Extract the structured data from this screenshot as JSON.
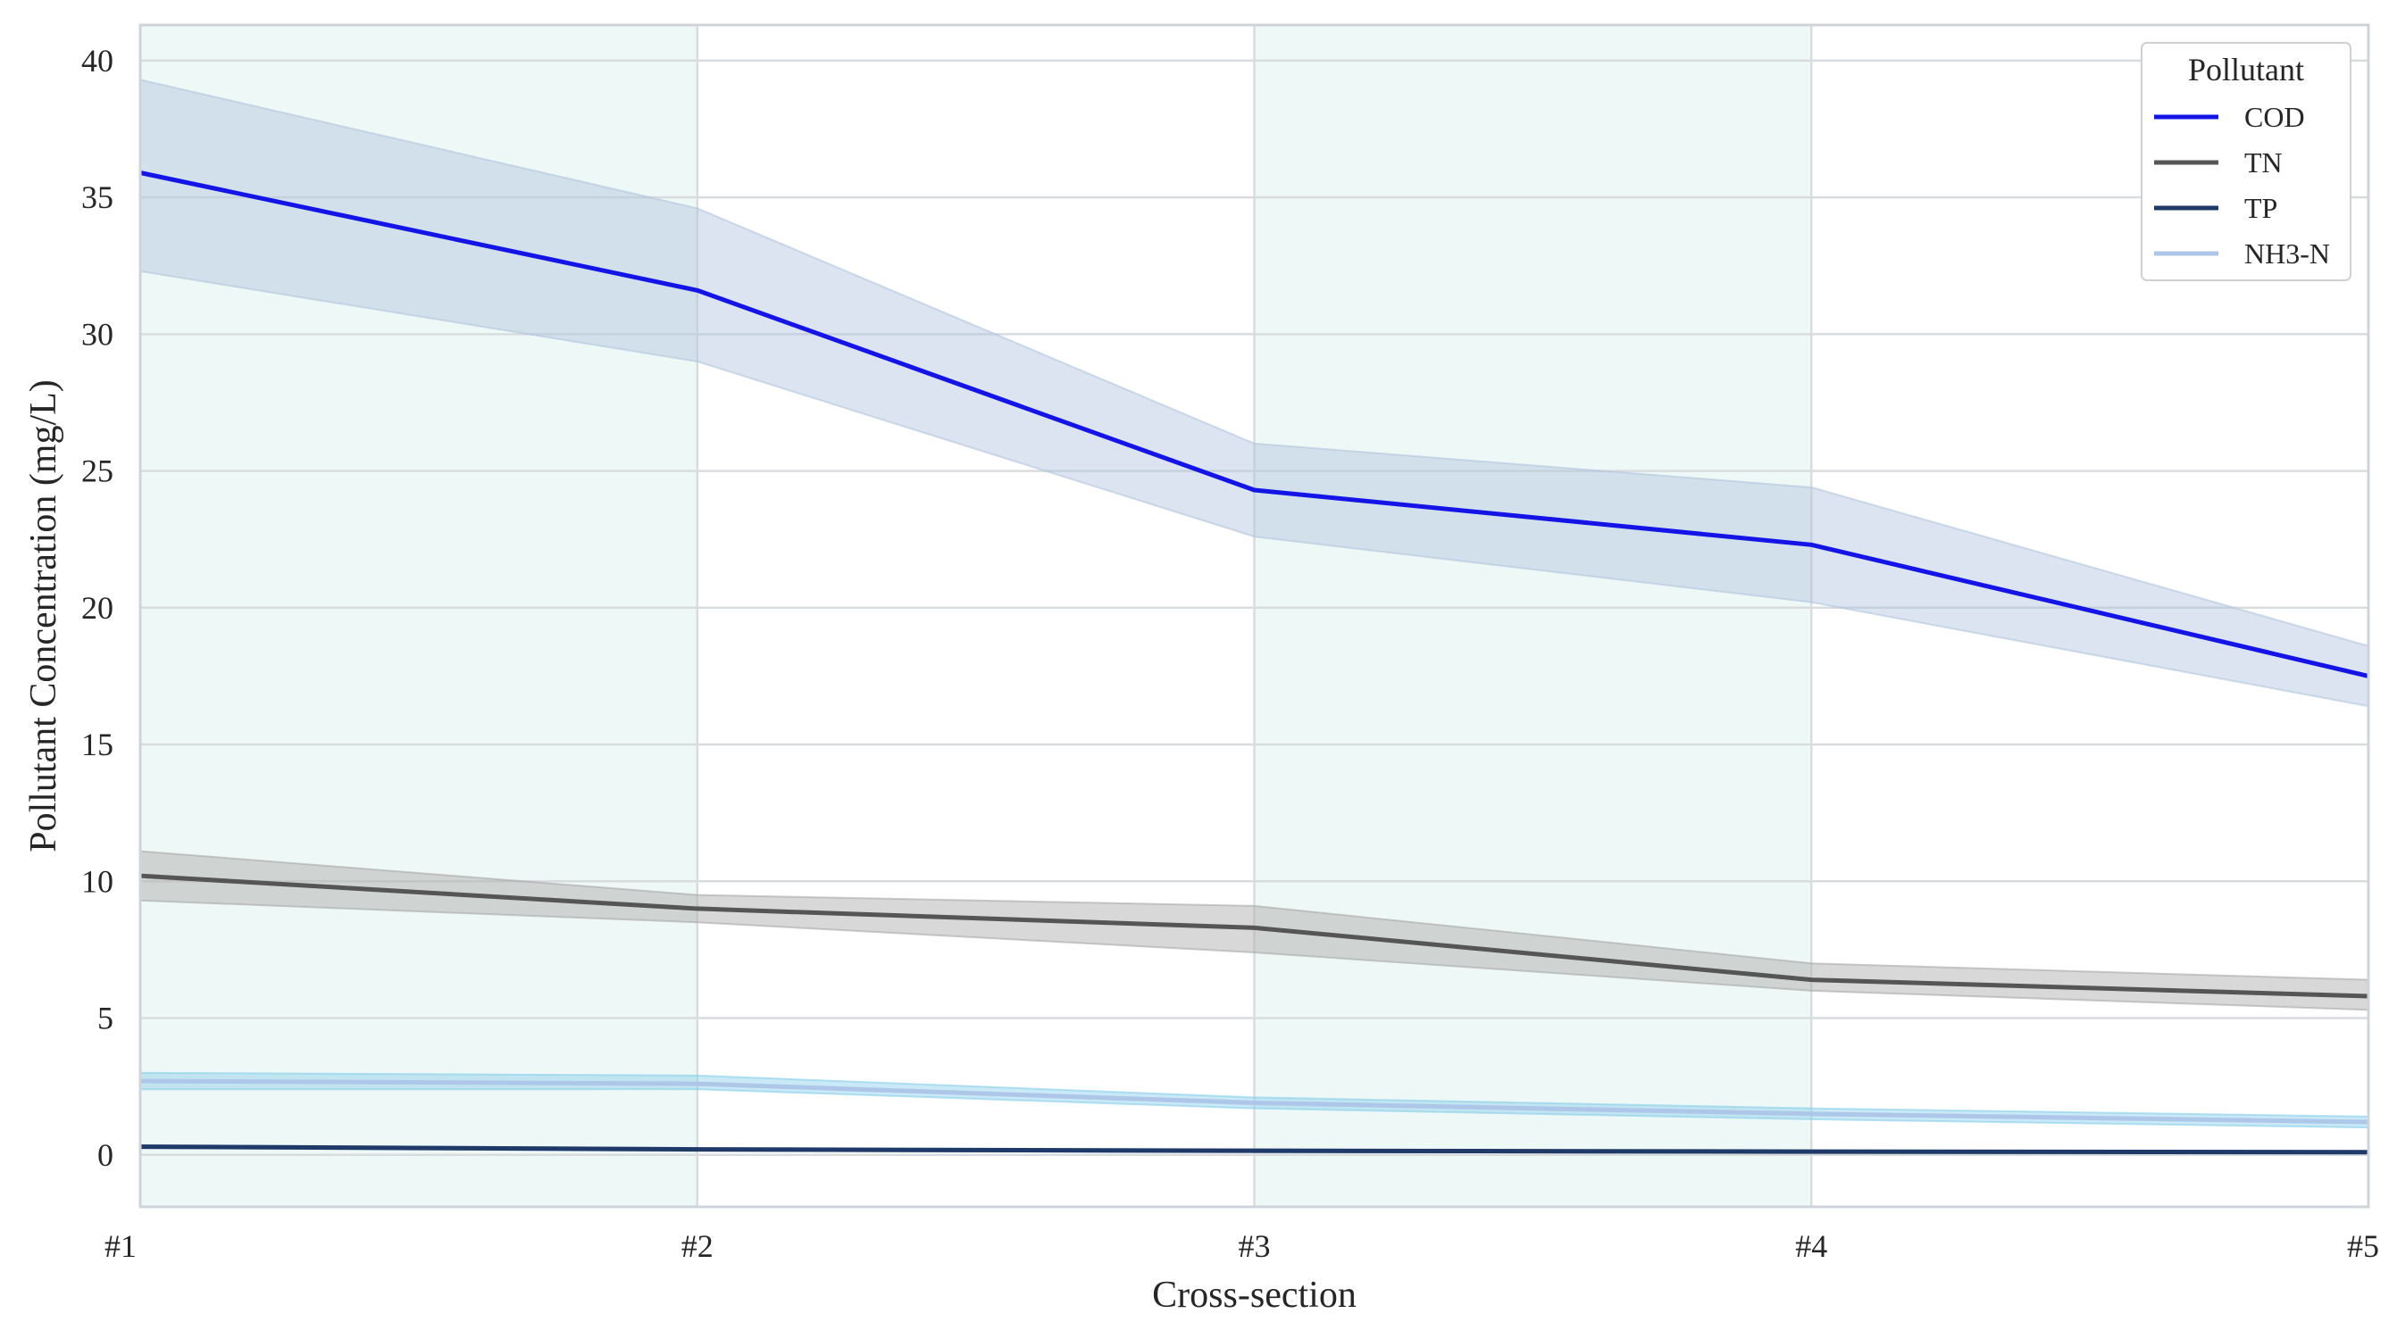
{
  "chart_data": {
    "type": "line",
    "xlabel": "Cross-section",
    "ylabel": "Pollutant Concentration (mg/L)",
    "categories": [
      "#1",
      "#2",
      "#3",
      "#4",
      "#5"
    ],
    "ylim": [
      -1.9,
      41.3
    ],
    "yticks": [
      0,
      5,
      10,
      15,
      20,
      25,
      30,
      35,
      40
    ],
    "grid": true,
    "shaded_bands": [
      [
        "#1",
        "#2"
      ],
      [
        "#3",
        "#4"
      ]
    ],
    "legend": {
      "title": "Pollutant",
      "position": "top-right"
    },
    "series": [
      {
        "name": "COD",
        "color": "#1414e6",
        "band_color": "#b0c4de",
        "values": [
          35.9,
          31.6,
          24.3,
          22.3,
          17.5
        ],
        "lower": [
          32.3,
          29.0,
          22.6,
          20.2,
          16.4
        ],
        "upper": [
          39.3,
          34.6,
          26.0,
          24.4,
          18.6
        ]
      },
      {
        "name": "TN",
        "color": "#555555",
        "band_color": "#a9a9a9",
        "values": [
          10.2,
          9.0,
          8.3,
          6.4,
          5.8
        ],
        "lower": [
          9.3,
          8.5,
          7.4,
          6.0,
          5.3
        ],
        "upper": [
          11.1,
          9.5,
          9.1,
          7.0,
          6.4
        ]
      },
      {
        "name": "TP",
        "color": "#1f3a68",
        "band_color": "#9fb3cf",
        "values": [
          0.3,
          0.2,
          0.15,
          0.12,
          0.1
        ],
        "lower": [
          0.25,
          0.15,
          0.1,
          0.08,
          0.06
        ],
        "upper": [
          0.35,
          0.25,
          0.2,
          0.16,
          0.14
        ]
      },
      {
        "name": "NH3-N",
        "color": "#aec7e8",
        "band_color": "#87ceeb",
        "values": [
          2.7,
          2.6,
          1.9,
          1.5,
          1.2
        ],
        "lower": [
          2.4,
          2.4,
          1.7,
          1.3,
          1.0
        ],
        "upper": [
          3.0,
          2.9,
          2.1,
          1.7,
          1.4
        ]
      }
    ]
  }
}
